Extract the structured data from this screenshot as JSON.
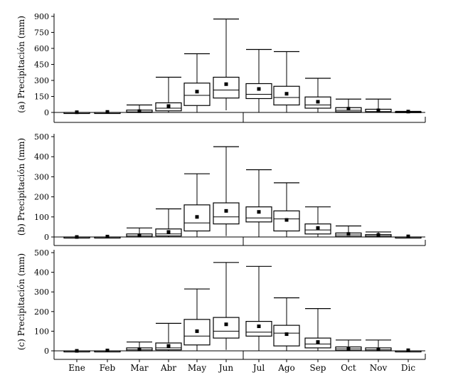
{
  "chart_data": {
    "type": "box",
    "categories": [
      "Ene",
      "Feb",
      "Mar",
      "Abr",
      "May",
      "Jun",
      "Jul",
      "Ago",
      "Sep",
      "Oct",
      "Nov",
      "Dic"
    ],
    "panels": [
      {
        "ylabel": "(a) Precipitación (mm)",
        "ylim": [
          0,
          900
        ],
        "yticks": [
          0,
          150,
          300,
          450,
          600,
          750,
          900
        ],
        "boxes": [
          {
            "month": "Ene",
            "min": 0,
            "q1": 0,
            "median": 0,
            "q3": 0,
            "max": 0,
            "mean": 2
          },
          {
            "month": "Feb",
            "min": 0,
            "q1": 0,
            "median": 0,
            "q3": 0,
            "max": 0,
            "mean": 5
          },
          {
            "month": "Mar",
            "min": 0,
            "q1": 0,
            "median": 5,
            "q3": 22,
            "max": 70,
            "mean": 12
          },
          {
            "month": "Abr",
            "min": 0,
            "q1": 15,
            "median": 40,
            "q3": 90,
            "max": 330,
            "mean": 60
          },
          {
            "month": "May",
            "min": 0,
            "q1": 65,
            "median": 160,
            "q3": 275,
            "max": 550,
            "mean": 195
          },
          {
            "month": "Jun",
            "min": 20,
            "q1": 135,
            "median": 210,
            "q3": 330,
            "max": 875,
            "mean": 265
          },
          {
            "month": "Jul",
            "min": 0,
            "q1": 130,
            "median": 170,
            "q3": 270,
            "max": 590,
            "mean": 220
          },
          {
            "month": "Ago",
            "min": 0,
            "q1": 70,
            "median": 140,
            "q3": 245,
            "max": 570,
            "mean": 175
          },
          {
            "month": "Sep",
            "min": 0,
            "q1": 40,
            "median": 70,
            "q3": 145,
            "max": 320,
            "mean": 100
          },
          {
            "month": "Oct",
            "min": 0,
            "q1": 5,
            "median": 20,
            "q3": 45,
            "max": 125,
            "mean": 35
          },
          {
            "month": "Nov",
            "min": 0,
            "q1": 2,
            "median": 8,
            "q3": 30,
            "max": 125,
            "mean": 20
          },
          {
            "month": "Dic",
            "min": 0,
            "q1": 0,
            "median": 2,
            "q3": 8,
            "max": 10,
            "mean": 8
          }
        ]
      },
      {
        "ylabel": "(b) Precipitación (mm)",
        "ylim": [
          0,
          500
        ],
        "yticks": [
          0,
          100,
          200,
          300,
          400,
          500
        ],
        "boxes": [
          {
            "month": "Ene",
            "min": 0,
            "q1": 0,
            "median": 0,
            "q3": 0,
            "max": 0,
            "mean": 0
          },
          {
            "month": "Feb",
            "min": 0,
            "q1": 0,
            "median": 0,
            "q3": 0,
            "max": 0,
            "mean": 2
          },
          {
            "month": "Mar",
            "min": 0,
            "q1": 0,
            "median": 5,
            "q3": 15,
            "max": 45,
            "mean": 8
          },
          {
            "month": "Abr",
            "min": 0,
            "q1": 5,
            "median": 15,
            "q3": 40,
            "max": 140,
            "mean": 25
          },
          {
            "month": "May",
            "min": 0,
            "q1": 30,
            "median": 70,
            "q3": 160,
            "max": 315,
            "mean": 100
          },
          {
            "month": "Jun",
            "min": 5,
            "q1": 65,
            "median": 100,
            "q3": 170,
            "max": 450,
            "mean": 130
          },
          {
            "month": "Jul",
            "min": 0,
            "q1": 75,
            "median": 95,
            "q3": 150,
            "max": 335,
            "mean": 125
          },
          {
            "month": "Ago",
            "min": 0,
            "q1": 30,
            "median": 90,
            "q3": 130,
            "max": 270,
            "mean": 85
          },
          {
            "month": "Sep",
            "min": 0,
            "q1": 15,
            "median": 35,
            "q3": 65,
            "max": 150,
            "mean": 45
          },
          {
            "month": "Oct",
            "min": 0,
            "q1": 2,
            "median": 10,
            "q3": 20,
            "max": 55,
            "mean": 15
          },
          {
            "month": "Nov",
            "min": 0,
            "q1": 0,
            "median": 5,
            "q3": 12,
            "max": 25,
            "mean": 10
          },
          {
            "month": "Dic",
            "min": 0,
            "q1": 0,
            "median": 0,
            "q3": 0,
            "max": 0,
            "mean": 3
          }
        ]
      },
      {
        "ylabel": "(c) Precipitación (mm)",
        "ylim": [
          0,
          500
        ],
        "yticks": [
          0,
          100,
          200,
          300,
          400,
          500
        ],
        "boxes": [
          {
            "month": "Ene",
            "min": 0,
            "q1": 0,
            "median": 0,
            "q3": 0,
            "max": 0,
            "mean": 0
          },
          {
            "month": "Feb",
            "min": 0,
            "q1": 0,
            "median": 0,
            "q3": 0,
            "max": 0,
            "mean": 2
          },
          {
            "month": "Mar",
            "min": 0,
            "q1": 0,
            "median": 5,
            "q3": 15,
            "max": 45,
            "mean": 8
          },
          {
            "month": "Abr",
            "min": 0,
            "q1": 5,
            "median": 15,
            "q3": 40,
            "max": 140,
            "mean": 25
          },
          {
            "month": "May",
            "min": 0,
            "q1": 30,
            "median": 75,
            "q3": 160,
            "max": 315,
            "mean": 100
          },
          {
            "month": "Jun",
            "min": 5,
            "q1": 65,
            "median": 100,
            "q3": 170,
            "max": 450,
            "mean": 135
          },
          {
            "month": "Jul",
            "min": 0,
            "q1": 75,
            "median": 95,
            "q3": 150,
            "max": 430,
            "mean": 125
          },
          {
            "month": "Ago",
            "min": 0,
            "q1": 25,
            "median": 90,
            "q3": 130,
            "max": 270,
            "mean": 85
          },
          {
            "month": "Sep",
            "min": 0,
            "q1": 15,
            "median": 35,
            "q3": 65,
            "max": 215,
            "mean": 45
          },
          {
            "month": "Oct",
            "min": 0,
            "q1": 2,
            "median": 10,
            "q3": 20,
            "max": 55,
            "mean": 10
          },
          {
            "month": "Nov",
            "min": 0,
            "q1": 0,
            "median": 5,
            "q3": 15,
            "max": 55,
            "mean": 8
          },
          {
            "month": "Dic",
            "min": 0,
            "q1": 0,
            "median": 0,
            "q3": 0,
            "max": 0,
            "mean": 3
          }
        ]
      }
    ]
  }
}
